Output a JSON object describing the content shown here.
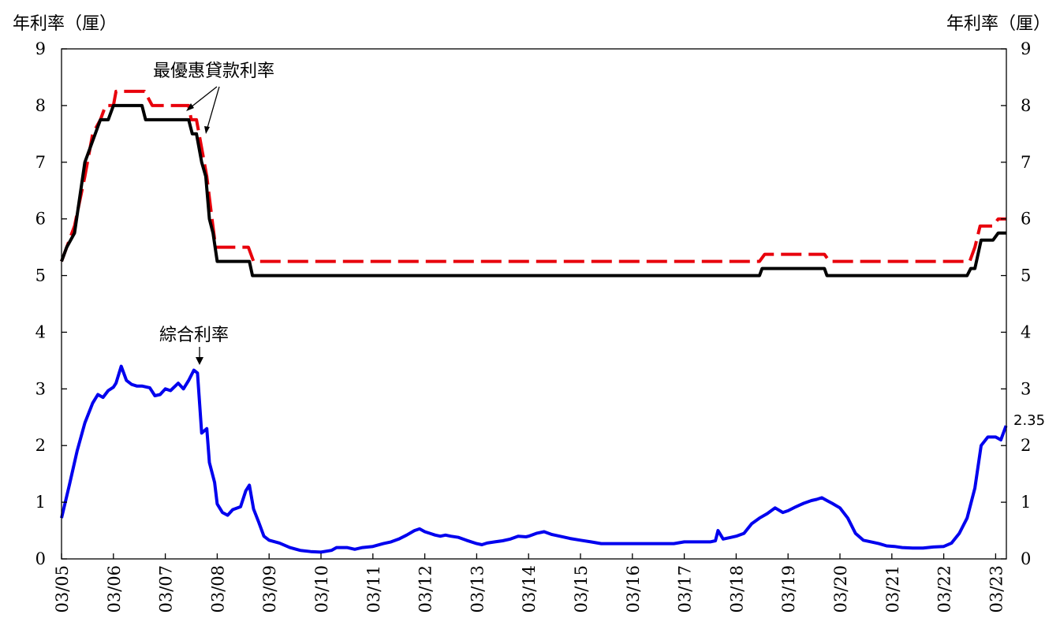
{
  "chart_data": {
    "type": "line",
    "y_unit_left": "年利率（厘）",
    "y_unit_right": "年利率（厘）",
    "ylim": [
      0,
      9
    ],
    "yticks": [
      "0",
      "1",
      "2",
      "3",
      "4",
      "5",
      "6",
      "7",
      "8",
      "9"
    ],
    "xlim": [
      "03/05",
      "03/23"
    ],
    "xticks": [
      "03/05",
      "03/06",
      "03/07",
      "03/08",
      "03/09",
      "03/10",
      "03/11",
      "03/12",
      "03/13",
      "03/14",
      "03/15",
      "03/16",
      "03/17",
      "03/18",
      "03/19",
      "03/20",
      "03/21",
      "03/22",
      "03/23"
    ],
    "grid": false,
    "annotations": {
      "prime": "最優惠貸款利率",
      "composite": "綜合利率",
      "last_value": "2.35"
    },
    "series": [
      {
        "key": "prime_high",
        "color": "#e8000b",
        "style": "dashed",
        "points": [
          [
            "03/05",
            5.25
          ],
          [
            "03/05.1",
            5.5
          ],
          [
            "03/05.25",
            5.875
          ],
          [
            "03/05.45",
            6.75
          ],
          [
            "03/05.6",
            7.5
          ],
          [
            "03/05.75",
            7.75
          ],
          [
            "03/05.85",
            8.0
          ],
          [
            "03/06",
            8.0
          ],
          [
            "03/06.05",
            8.25
          ],
          [
            "03/06.6",
            8.25
          ],
          [
            "03/06.75",
            8.0
          ],
          [
            "03/07.45",
            8.0
          ],
          [
            "03/07.5",
            7.75
          ],
          [
            "03/07.6",
            7.75
          ],
          [
            "03/07.7",
            7.25
          ],
          [
            "03/07.8",
            6.75
          ],
          [
            "03/07.9",
            6.0
          ],
          [
            "03/07.97",
            5.5
          ],
          [
            "03/08.6",
            5.5
          ],
          [
            "03/08.7",
            5.25
          ],
          [
            "03/18.45",
            5.25
          ],
          [
            "03/18.55",
            5.375
          ],
          [
            "03/19.7",
            5.375
          ],
          [
            "03/19.8",
            5.25
          ],
          [
            "03/22.5",
            5.25
          ],
          [
            "03/22.6",
            5.5
          ],
          [
            "03/22.7",
            5.875
          ],
          [
            "03/22.95",
            5.875
          ],
          [
            "03/23.05",
            6.0
          ],
          [
            "03/23.2",
            6.0
          ]
        ]
      },
      {
        "key": "prime_low",
        "color": "#000000",
        "style": "solid",
        "points": [
          [
            "03/05",
            5.25
          ],
          [
            "03/05.1",
            5.5
          ],
          [
            "03/05.25",
            5.75
          ],
          [
            "03/05.45",
            7.0
          ],
          [
            "03/05.75",
            7.75
          ],
          [
            "03/05.9",
            7.75
          ],
          [
            "03/06",
            8.0
          ],
          [
            "03/06.55",
            8.0
          ],
          [
            "03/06.62",
            7.75
          ],
          [
            "03/07.45",
            7.75
          ],
          [
            "03/07.52",
            7.5
          ],
          [
            "03/07.6",
            7.5
          ],
          [
            "03/07.7",
            7.0
          ],
          [
            "03/07.78",
            6.75
          ],
          [
            "03/07.85",
            6.0
          ],
          [
            "03/07.92",
            5.75
          ],
          [
            "03/08",
            5.25
          ],
          [
            "03/08.62",
            5.25
          ],
          [
            "03/08.68",
            5.0
          ],
          [
            "03/18.45",
            5.0
          ],
          [
            "03/18.5",
            5.125
          ],
          [
            "03/19.7",
            5.125
          ],
          [
            "03/19.75",
            5.0
          ],
          [
            "03/22.45",
            5.0
          ],
          [
            "03/22.52",
            5.125
          ],
          [
            "03/22.6",
            5.125
          ],
          [
            "03/22.72",
            5.625
          ],
          [
            "03/22.95",
            5.625
          ],
          [
            "03/23.05",
            5.75
          ],
          [
            "03/23.2",
            5.75
          ]
        ]
      },
      {
        "key": "composite",
        "color": "#0000ee",
        "style": "solid",
        "points": [
          [
            "03/05",
            0.72
          ],
          [
            "03/05.15",
            1.3
          ],
          [
            "03/05.3",
            1.9
          ],
          [
            "03/05.45",
            2.4
          ],
          [
            "03/05.6",
            2.75
          ],
          [
            "03/05.7",
            2.9
          ],
          [
            "03/05.8",
            2.85
          ],
          [
            "03/05.9",
            2.97
          ],
          [
            "03/06",
            3.03
          ],
          [
            "03/06.05",
            3.1
          ],
          [
            "03/06.15",
            3.4
          ],
          [
            "03/06.25",
            3.15
          ],
          [
            "03/06.35",
            3.08
          ],
          [
            "03/06.45",
            3.05
          ],
          [
            "03/06.55",
            3.05
          ],
          [
            "03/06.7",
            3.02
          ],
          [
            "03/06.8",
            2.88
          ],
          [
            "03/06.9",
            2.9
          ],
          [
            "03/07",
            3.0
          ],
          [
            "03/07.1",
            2.97
          ],
          [
            "03/07.25",
            3.1
          ],
          [
            "03/07.35",
            3.0
          ],
          [
            "03/07.45",
            3.15
          ],
          [
            "03/07.55",
            3.33
          ],
          [
            "03/07.62",
            3.28
          ],
          [
            "03/07.7",
            2.22
          ],
          [
            "03/07.8",
            2.3
          ],
          [
            "03/07.85",
            1.7
          ],
          [
            "03/07.95",
            1.35
          ],
          [
            "03/08",
            0.97
          ],
          [
            "03/08.1",
            0.82
          ],
          [
            "03/08.2",
            0.77
          ],
          [
            "03/08.3",
            0.87
          ],
          [
            "03/08.45",
            0.92
          ],
          [
            "03/08.55",
            1.2
          ],
          [
            "03/08.62",
            1.3
          ],
          [
            "03/08.7",
            0.88
          ],
          [
            "03/08.8",
            0.65
          ],
          [
            "03/08.9",
            0.4
          ],
          [
            "03/09",
            0.33
          ],
          [
            "03/09.2",
            0.28
          ],
          [
            "03/09.4",
            0.2
          ],
          [
            "03/09.6",
            0.15
          ],
          [
            "03/09.8",
            0.13
          ],
          [
            "03/10",
            0.12
          ],
          [
            "03/10.2",
            0.15
          ],
          [
            "03/10.3",
            0.2
          ],
          [
            "03/10.5",
            0.2
          ],
          [
            "03/10.65",
            0.17
          ],
          [
            "03/10.8",
            0.2
          ],
          [
            "03/11",
            0.22
          ],
          [
            "03/11.2",
            0.27
          ],
          [
            "03/11.35",
            0.3
          ],
          [
            "03/11.5",
            0.35
          ],
          [
            "03/11.65",
            0.42
          ],
          [
            "03/11.8",
            0.5
          ],
          [
            "03/11.9",
            0.53
          ],
          [
            "03/12",
            0.48
          ],
          [
            "03/12.1",
            0.45
          ],
          [
            "03/12.2",
            0.42
          ],
          [
            "03/12.3",
            0.4
          ],
          [
            "03/12.4",
            0.42
          ],
          [
            "03/12.5",
            0.4
          ],
          [
            "03/12.65",
            0.38
          ],
          [
            "03/12.8",
            0.33
          ],
          [
            "03/13",
            0.27
          ],
          [
            "03/13.1",
            0.25
          ],
          [
            "03/13.2",
            0.28
          ],
          [
            "03/13.35",
            0.3
          ],
          [
            "03/13.5",
            0.32
          ],
          [
            "03/13.65",
            0.35
          ],
          [
            "03/13.8",
            0.4
          ],
          [
            "03/13.95",
            0.39
          ],
          [
            "03/14",
            0.4
          ],
          [
            "03/14.15",
            0.45
          ],
          [
            "03/14.3",
            0.48
          ],
          [
            "03/14.45",
            0.43
          ],
          [
            "03/14.6",
            0.4
          ],
          [
            "03/14.8",
            0.36
          ],
          [
            "03/15",
            0.33
          ],
          [
            "03/15.2",
            0.3
          ],
          [
            "03/15.4",
            0.27
          ],
          [
            "03/16.8",
            0.27
          ],
          [
            "03/17",
            0.3
          ],
          [
            "03/17.5",
            0.3
          ],
          [
            "03/17.6",
            0.32
          ],
          [
            "03/17.65",
            0.5
          ],
          [
            "03/17.75",
            0.35
          ],
          [
            "03/17.9",
            0.38
          ],
          [
            "03/18",
            0.4
          ],
          [
            "03/18.15",
            0.45
          ],
          [
            "03/18.3",
            0.62
          ],
          [
            "03/18.45",
            0.72
          ],
          [
            "03/18.6",
            0.8
          ],
          [
            "03/18.75",
            0.9
          ],
          [
            "03/18.9",
            0.82
          ],
          [
            "03/19",
            0.85
          ],
          [
            "03/19.15",
            0.92
          ],
          [
            "03/19.3",
            0.98
          ],
          [
            "03/19.45",
            1.03
          ],
          [
            "03/19.55",
            1.05
          ],
          [
            "03/19.65",
            1.08
          ],
          [
            "03/19.75",
            1.03
          ],
          [
            "03/19.85",
            0.98
          ],
          [
            "03/20",
            0.9
          ],
          [
            "03/20.15",
            0.72
          ],
          [
            "03/20.3",
            0.45
          ],
          [
            "03/20.45",
            0.33
          ],
          [
            "03/20.6",
            0.3
          ],
          [
            "03/20.75",
            0.27
          ],
          [
            "03/20.9",
            0.23
          ],
          [
            "03/21.05",
            0.22
          ],
          [
            "03/21.2",
            0.2
          ],
          [
            "03/21.4",
            0.19
          ],
          [
            "03/21.6",
            0.19
          ],
          [
            "03/21.8",
            0.21
          ],
          [
            "03/22",
            0.22
          ],
          [
            "03/22.15",
            0.28
          ],
          [
            "03/22.3",
            0.45
          ],
          [
            "03/22.45",
            0.72
          ],
          [
            "03/22.6",
            1.25
          ],
          [
            "03/22.72",
            2.0
          ],
          [
            "03/22.85",
            2.15
          ],
          [
            "03/23",
            2.15
          ],
          [
            "03/23.1",
            2.1
          ],
          [
            "03/23.2",
            2.35
          ]
        ]
      }
    ]
  }
}
